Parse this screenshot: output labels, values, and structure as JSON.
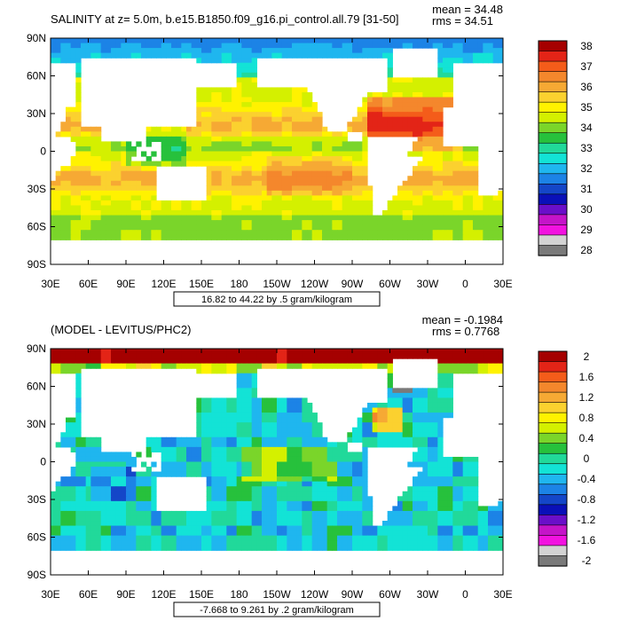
{
  "chart_data": [
    {
      "type": "heatmap",
      "title": "SALINITY at z=   5.0m, b.e15.B1850.f09_g16.pi_control.all.79 [31-50]",
      "stats": {
        "mean": "mean = 34.48",
        "rms": "rms = 34.51"
      },
      "range_note": "16.82 to 44.22 by .5 gram/kilogram",
      "xticks": [
        "30E",
        "60E",
        "90E",
        "120E",
        "150E",
        "180",
        "150W",
        "120W",
        "90W",
        "60W",
        "30W",
        "0",
        "30E"
      ],
      "yticks": [
        "90N",
        "60N",
        "30N",
        "0",
        "30S",
        "60S",
        "90S"
      ],
      "xlim": [
        30,
        390
      ],
      "ylim": [
        -90,
        90
      ],
      "colorbar": {
        "labels": [
          "38",
          "37",
          "36",
          "35",
          "34",
          "33",
          "32",
          "31",
          "30",
          "29",
          "28"
        ],
        "colors": [
          "#a50000",
          "#e32417",
          "#f45c1a",
          "#f4872c",
          "#f6a934",
          "#fbd12f",
          "#fff200",
          "#d4f000",
          "#7ad52a",
          "#27c13c",
          "#21d99a",
          "#13e3d6",
          "#1fb6ef",
          "#1c83e6",
          "#1446c8",
          "#0a10b8",
          "#6a0fc9",
          "#c514c9",
          "#f212e0",
          "#d3d3d3",
          "#7a7a7a"
        ]
      }
    },
    {
      "type": "heatmap",
      "title": "(MODEL - LEVITUS/PHC2)",
      "stats": {
        "mean": "mean = -0.1984",
        "rms": "rms = 0.7768"
      },
      "range_note": "-7.668 to 9.261 by .2 gram/kilogram",
      "xticks": [
        "30E",
        "60E",
        "90E",
        "120E",
        "150E",
        "180",
        "150W",
        "120W",
        "90W",
        "60W",
        "30W",
        "0",
        "30E"
      ],
      "yticks": [
        "90N",
        "60N",
        "30N",
        "0",
        "30S",
        "60S",
        "90S"
      ],
      "xlim": [
        30,
        390
      ],
      "ylim": [
        -90,
        90
      ],
      "colorbar": {
        "labels": [
          "2",
          "1.6",
          "1.2",
          "0.8",
          "0.4",
          "0",
          "-0.4",
          "-0.8",
          "-1.2",
          "-1.6",
          "-2"
        ],
        "colors": [
          "#a50000",
          "#e32417",
          "#f45c1a",
          "#f4872c",
          "#f6a934",
          "#fbd12f",
          "#fff200",
          "#d4f000",
          "#7ad52a",
          "#27c13c",
          "#21d99a",
          "#13e3d6",
          "#1fb6ef",
          "#1c83e6",
          "#1446c8",
          "#0a10b8",
          "#6a0fc9",
          "#c514c9",
          "#f212e0",
          "#d3d3d3",
          "#7a7a7a"
        ]
      }
    }
  ]
}
